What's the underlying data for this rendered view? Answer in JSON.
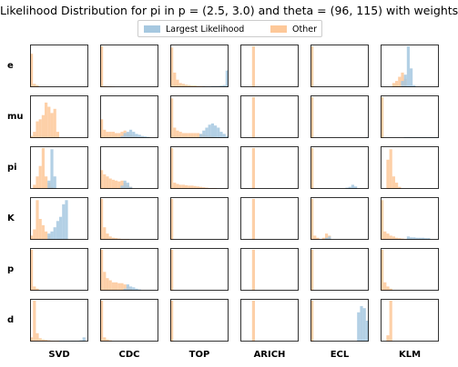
{
  "chart_data": {
    "type": "histogram-grid",
    "title": "Likelihood Distribution for pi in p = (2.5, 3.0) and theta = (96, 115) with weights",
    "legend": {
      "placement": "top-center",
      "entries": [
        {
          "name": "Largest Likelihood",
          "color": "#a6c8e0"
        },
        {
          "name": "Other",
          "color": "#fdc899"
        }
      ]
    },
    "rows": [
      "e",
      "mu",
      "pi",
      "K",
      "p",
      "d"
    ],
    "columns": [
      "SVD",
      "CDC",
      "TOP",
      "ARICH",
      "ECL",
      "KLM"
    ],
    "bins": 20,
    "panels": [
      [
        {
          "other": [
            0.8,
            0.08,
            0.05,
            0,
            0,
            0,
            0,
            0,
            0,
            0,
            0,
            0,
            0,
            0,
            0,
            0,
            0,
            0,
            0,
            0
          ],
          "largest": []
        },
        {
          "other": [
            0.98,
            0.03,
            0.02,
            0.02,
            0.01,
            0,
            0,
            0,
            0,
            0,
            0,
            0,
            0,
            0,
            0,
            0,
            0,
            0,
            0,
            0
          ],
          "largest": []
        },
        {
          "other": [
            0.95,
            0.35,
            0.18,
            0.1,
            0.08,
            0.06,
            0.05,
            0.04,
            0.04,
            0.03,
            0.03,
            0.03,
            0.02,
            0.02,
            0.02,
            0.02,
            0.02,
            0.02,
            0.02,
            0.02
          ],
          "largest": [
            0,
            0,
            0,
            0,
            0,
            0,
            0,
            0,
            0,
            0,
            0,
            0.02,
            0.02,
            0.02,
            0.03,
            0.03,
            0.03,
            0.04,
            0.05,
            0.4
          ]
        },
        {
          "other": [
            0,
            0,
            0,
            0,
            0.98,
            0,
            0,
            0,
            0,
            0,
            0,
            0,
            0,
            0,
            0,
            0,
            0,
            0,
            0,
            0
          ],
          "largest": []
        },
        {
          "other": [
            0.98,
            0,
            0,
            0,
            0,
            0,
            0,
            0,
            0,
            0,
            0,
            0,
            0,
            0,
            0,
            0,
            0,
            0,
            0,
            0
          ],
          "largest": []
        },
        {
          "other": [
            0,
            0,
            0,
            0,
            0.1,
            0.15,
            0.25,
            0.35,
            0.2,
            0,
            0,
            0,
            0,
            0,
            0,
            0,
            0,
            0,
            0,
            0
          ],
          "largest": [
            0,
            0,
            0,
            0,
            0,
            0,
            0,
            0.15,
            0.3,
            0.98,
            0.45,
            0.05,
            0,
            0,
            0,
            0,
            0,
            0,
            0,
            0
          ]
        }
      ],
      [
        {
          "other": [
            0.05,
            0.15,
            0.4,
            0.45,
            0.55,
            0.85,
            0.75,
            0.6,
            0.7,
            0.15,
            0,
            0,
            0,
            0,
            0,
            0,
            0,
            0,
            0,
            0
          ],
          "largest": []
        },
        {
          "other": [
            0.45,
            0.2,
            0.15,
            0.15,
            0.15,
            0.12,
            0.12,
            0.15,
            0.18,
            0.12,
            0.08,
            0.05,
            0.04,
            0.03,
            0.03,
            0,
            0,
            0,
            0,
            0
          ],
          "largest": [
            0,
            0,
            0,
            0,
            0,
            0,
            0,
            0.05,
            0.12,
            0.15,
            0.2,
            0.15,
            0.1,
            0.08,
            0.05,
            0.04,
            0.03,
            0,
            0,
            0
          ]
        },
        {
          "other": [
            0.95,
            0.25,
            0.18,
            0.15,
            0.12,
            0.12,
            0.12,
            0.12,
            0.12,
            0.12,
            0.1,
            0.08,
            0.06,
            0.05,
            0.04,
            0.03,
            0.02,
            0,
            0,
            0
          ],
          "largest": [
            0,
            0,
            0,
            0,
            0,
            0,
            0,
            0,
            0,
            0,
            0.1,
            0.18,
            0.25,
            0.32,
            0.35,
            0.3,
            0.25,
            0.15,
            0.1,
            0.05
          ]
        },
        {
          "other": [
            0,
            0,
            0,
            0,
            0.98,
            0,
            0,
            0,
            0,
            0,
            0,
            0,
            0,
            0,
            0,
            0,
            0,
            0,
            0,
            0
          ],
          "largest": []
        },
        {
          "other": [
            0.98,
            0,
            0,
            0,
            0,
            0,
            0,
            0,
            0,
            0,
            0,
            0,
            0,
            0,
            0,
            0,
            0,
            0,
            0,
            0
          ],
          "largest": [
            0,
            0,
            0,
            0,
            0,
            0,
            0,
            0,
            0,
            0,
            0,
            0,
            0,
            0,
            0,
            0,
            0,
            0,
            0,
            0.02
          ]
        },
        {
          "other": [
            0.98,
            0,
            0,
            0,
            0,
            0,
            0,
            0,
            0,
            0,
            0,
            0,
            0,
            0,
            0,
            0,
            0,
            0,
            0,
            0
          ],
          "largest": [
            0,
            0,
            0,
            0,
            0,
            0,
            0,
            0,
            0.02,
            0.02,
            0.02,
            0.02,
            0.02,
            0.02,
            0.02,
            0.02,
            0.02,
            0.02,
            0.02,
            0.02
          ]
        }
      ],
      [
        {
          "other": [
            0,
            0.1,
            0.3,
            0.55,
            0.98,
            0.3,
            0.15,
            0.05,
            0,
            0,
            0,
            0,
            0,
            0,
            0,
            0,
            0,
            0,
            0,
            0
          ],
          "largest": [
            0,
            0,
            0,
            0,
            0,
            0,
            0.2,
            0.95,
            0.3,
            0,
            0,
            0,
            0,
            0,
            0,
            0,
            0,
            0,
            0,
            0
          ]
        },
        {
          "other": [
            0.45,
            0.35,
            0.3,
            0.25,
            0.22,
            0.2,
            0.18,
            0.2,
            0.15,
            0.1,
            0.05,
            0,
            0,
            0,
            0,
            0,
            0,
            0,
            0,
            0
          ],
          "largest": [
            0,
            0,
            0,
            0,
            0,
            0,
            0,
            0.08,
            0.2,
            0.15,
            0.05,
            0,
            0,
            0,
            0,
            0,
            0,
            0,
            0,
            0
          ]
        },
        {
          "other": [
            0.98,
            0.15,
            0.12,
            0.1,
            0.1,
            0.09,
            0.08,
            0.08,
            0.07,
            0.06,
            0.05,
            0.04,
            0.03,
            0.02,
            0.02,
            0.02,
            0,
            0,
            0,
            0
          ],
          "largest": []
        },
        {
          "other": [
            0,
            0,
            0,
            0,
            0.98,
            0,
            0,
            0,
            0,
            0,
            0,
            0,
            0,
            0,
            0,
            0,
            0,
            0,
            0,
            0
          ],
          "largest": []
        },
        {
          "other": [
            0.98,
            0,
            0,
            0,
            0,
            0,
            0,
            0,
            0,
            0,
            0,
            0,
            0,
            0,
            0,
            0,
            0,
            0,
            0,
            0
          ],
          "largest": [
            0,
            0,
            0,
            0,
            0,
            0,
            0,
            0,
            0,
            0,
            0,
            0,
            0.03,
            0.05,
            0.1,
            0.06,
            0,
            0,
            0,
            0
          ]
        },
        {
          "other": [
            0,
            0,
            0.7,
            0.95,
            0.3,
            0.15,
            0.05,
            0,
            0,
            0,
            0,
            0,
            0,
            0,
            0,
            0,
            0,
            0,
            0,
            0
          ],
          "largest": []
        }
      ],
      [
        {
          "other": [
            0.1,
            0.25,
            0.95,
            0.5,
            0.35,
            0.2,
            0.1,
            0,
            0,
            0,
            0,
            0,
            0,
            0,
            0,
            0,
            0,
            0,
            0,
            0
          ],
          "largest": [
            0,
            0,
            0,
            0,
            0,
            0,
            0.15,
            0.2,
            0.3,
            0.45,
            0.55,
            0.85,
            0.95,
            0,
            0,
            0,
            0,
            0,
            0,
            0
          ]
        },
        {
          "other": [
            0.98,
            0.3,
            0.15,
            0.08,
            0.05,
            0.04,
            0.03,
            0.02,
            0.02,
            0.02,
            0,
            0,
            0,
            0,
            0,
            0,
            0,
            0,
            0,
            0
          ],
          "largest": []
        },
        {
          "other": [
            0.98,
            0,
            0,
            0,
            0,
            0,
            0,
            0,
            0,
            0,
            0,
            0,
            0,
            0,
            0,
            0,
            0,
            0,
            0,
            0
          ],
          "largest": []
        },
        {
          "other": [
            0,
            0,
            0,
            0,
            0.98,
            0,
            0,
            0,
            0,
            0,
            0,
            0,
            0,
            0,
            0,
            0,
            0,
            0,
            0,
            0
          ],
          "largest": []
        },
        {
          "other": [
            0.98,
            0.1,
            0.05,
            0,
            0.05,
            0.15,
            0.1,
            0,
            0,
            0,
            0,
            0,
            0,
            0,
            0,
            0,
            0,
            0,
            0,
            0
          ],
          "largest": [
            0,
            0,
            0,
            0,
            0,
            0.05,
            0.08,
            0,
            0,
            0,
            0,
            0,
            0,
            0,
            0,
            0,
            0,
            0,
            0,
            0
          ]
        },
        {
          "other": [
            0.95,
            0.2,
            0.15,
            0.1,
            0.08,
            0.05,
            0.04,
            0.03,
            0.02,
            0.02,
            0,
            0,
            0,
            0,
            0,
            0,
            0,
            0,
            0,
            0
          ],
          "largest": [
            0,
            0,
            0,
            0,
            0,
            0,
            0,
            0,
            0,
            0.08,
            0.06,
            0.06,
            0.05,
            0.05,
            0.05,
            0.04,
            0.04,
            0,
            0,
            0
          ]
        }
      ],
      [
        {
          "other": [
            0.98,
            0.1,
            0.05,
            0,
            0,
            0,
            0,
            0,
            0,
            0,
            0,
            0,
            0,
            0,
            0,
            0,
            0,
            0,
            0,
            0
          ],
          "largest": []
        },
        {
          "other": [
            0.98,
            0.45,
            0.3,
            0.25,
            0.2,
            0.2,
            0.18,
            0.18,
            0.15,
            0.1,
            0.05,
            0,
            0,
            0,
            0,
            0,
            0,
            0,
            0,
            0
          ],
          "largest": [
            0,
            0,
            0,
            0,
            0,
            0,
            0,
            0,
            0.05,
            0.15,
            0.1,
            0.08,
            0.05,
            0.03,
            0,
            0,
            0,
            0,
            0,
            0
          ]
        },
        {
          "other": [
            0.98,
            0,
            0,
            0,
            0,
            0,
            0,
            0,
            0,
            0,
            0,
            0,
            0,
            0,
            0,
            0,
            0,
            0,
            0,
            0
          ],
          "largest": []
        },
        {
          "other": [
            0,
            0,
            0,
            0,
            0.98,
            0,
            0,
            0,
            0,
            0,
            0,
            0,
            0,
            0,
            0,
            0,
            0,
            0,
            0,
            0
          ],
          "largest": []
        },
        {
          "other": [
            0.98,
            0,
            0,
            0,
            0,
            0,
            0,
            0,
            0,
            0,
            0,
            0,
            0,
            0,
            0,
            0,
            0,
            0,
            0,
            0
          ],
          "largest": []
        },
        {
          "other": [
            0.98,
            0.2,
            0.1,
            0.05,
            0,
            0,
            0,
            0,
            0,
            0,
            0,
            0,
            0,
            0,
            0,
            0,
            0,
            0,
            0,
            0
          ],
          "largest": []
        }
      ],
      [
        {
          "other": [
            0.1,
            0.98,
            0.2,
            0.08,
            0.05,
            0.04,
            0.03,
            0.02,
            0.02,
            0.02,
            0,
            0,
            0,
            0,
            0,
            0,
            0,
            0,
            0,
            0
          ],
          "largest": [
            0,
            0,
            0,
            0,
            0,
            0,
            0,
            0,
            0,
            0,
            0.02,
            0.02,
            0.02,
            0.02,
            0.02,
            0.02,
            0.02,
            0.03,
            0.1,
            0
          ]
        },
        {
          "other": [
            0.98,
            0.1,
            0.05,
            0.03,
            0,
            0,
            0,
            0,
            0,
            0,
            0,
            0,
            0,
            0,
            0,
            0,
            0,
            0,
            0,
            0
          ],
          "largest": []
        },
        {
          "other": [
            0.98,
            0,
            0,
            0,
            0,
            0,
            0,
            0,
            0,
            0,
            0,
            0,
            0,
            0,
            0,
            0,
            0,
            0,
            0,
            0
          ],
          "largest": []
        },
        {
          "other": [
            0,
            0,
            0,
            0,
            0.98,
            0,
            0,
            0,
            0,
            0,
            0,
            0,
            0,
            0,
            0,
            0,
            0,
            0,
            0,
            0
          ],
          "largest": []
        },
        {
          "other": [
            0.98,
            0,
            0,
            0,
            0,
            0,
            0,
            0,
            0,
            0,
            0,
            0,
            0,
            0,
            0,
            0,
            0,
            0,
            0,
            0
          ],
          "largest": [
            0,
            0,
            0,
            0,
            0,
            0,
            0,
            0,
            0,
            0,
            0,
            0,
            0,
            0,
            0,
            0,
            0.7,
            0.85,
            0.8,
            0.5
          ]
        },
        {
          "other": [
            0,
            0,
            0.15,
            0.98,
            0,
            0,
            0,
            0,
            0,
            0,
            0,
            0,
            0,
            0,
            0,
            0,
            0,
            0,
            0,
            0
          ],
          "largest": []
        }
      ]
    ]
  }
}
